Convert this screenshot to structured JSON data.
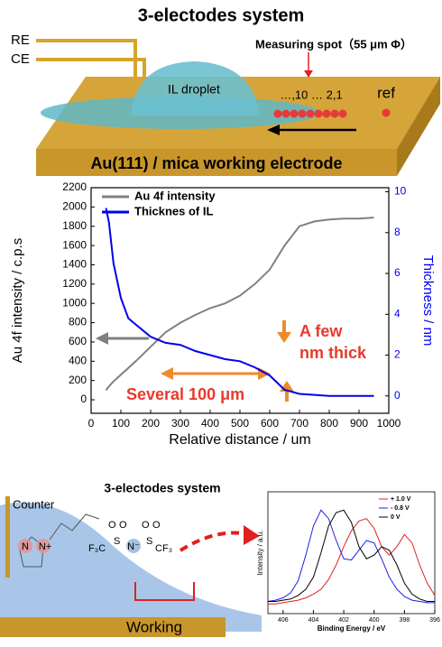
{
  "top_diagram": {
    "title": "3-electodes system",
    "re": "RE",
    "ce": "CE",
    "spot": "Measuring spot（55 μm Φ）",
    "droplet": "IL droplet",
    "spots": "…,10 … 2,1",
    "ref": "ref",
    "electrode": "Au(111) / mica working electrode"
  },
  "chart_data": [
    {
      "type": "line",
      "xlabel": "Relative distance / um",
      "ylabel": "Au 4f intensity / c.p.s",
      "y2label": "Thickness / nm",
      "x": [
        50,
        60,
        75,
        100,
        125,
        150,
        200,
        250,
        300,
        350,
        400,
        450,
        500,
        550,
        600,
        650,
        700,
        750,
        800,
        850,
        900,
        950
      ],
      "series": [
        {
          "name": "Au 4f intensity",
          "color": "#808080",
          "values": [
            100,
            140,
            190,
            260,
            330,
            400,
            550,
            700,
            800,
            880,
            950,
            1000,
            1080,
            1200,
            1350,
            1600,
            1800,
            1850,
            1870,
            1880,
            1880,
            1890
          ]
        },
        {
          "name": "Thicknes of IL",
          "color": "#0000ee",
          "axis": "y2",
          "values": [
            9.2,
            8.5,
            6.5,
            4.8,
            3.8,
            3.5,
            2.9,
            2.6,
            2.5,
            2.2,
            2.0,
            1.8,
            1.7,
            1.4,
            1.0,
            0.3,
            0.1,
            0.05,
            0,
            0,
            0,
            0
          ]
        }
      ],
      "xlim": [
        0,
        1000
      ],
      "xticks": [
        0,
        100,
        200,
        300,
        400,
        500,
        600,
        700,
        800,
        900,
        1000
      ],
      "ylim": [
        -140,
        2200
      ],
      "yticks": [
        0,
        200,
        400,
        600,
        800,
        1000,
        1200,
        1400,
        1600,
        1800,
        2000,
        2200
      ],
      "y2lim": [
        -0.85,
        10.2
      ],
      "y2ticks": [
        0,
        2,
        4,
        6,
        8,
        10
      ],
      "annotations": [
        [
          "A few",
          "nm thick"
        ],
        "Several 100 μm"
      ],
      "legend": "upper-left"
    },
    {
      "type": "line",
      "xlabel": "Binding Energy / eV",
      "ylabel": "Intensity / a.u.",
      "x": [
        407,
        406.5,
        406,
        405.5,
        405,
        404.5,
        404,
        403.5,
        403,
        402.5,
        402,
        401.5,
        401,
        400.5,
        400,
        399.5,
        399,
        398.5,
        398,
        397.5,
        397,
        396.5,
        396
      ],
      "series": [
        {
          "name": "+ 1.0 V",
          "color": "#e02020",
          "values": [
            0.08,
            0.08,
            0.09,
            0.1,
            0.11,
            0.13,
            0.16,
            0.2,
            0.28,
            0.4,
            0.55,
            0.68,
            0.76,
            0.78,
            0.7,
            0.55,
            0.48,
            0.55,
            0.65,
            0.58,
            0.4,
            0.25,
            0.15
          ]
        },
        {
          "name": "- 0.8 V",
          "color": "#2020e0",
          "values": [
            0.1,
            0.11,
            0.13,
            0.17,
            0.27,
            0.48,
            0.72,
            0.85,
            0.78,
            0.6,
            0.45,
            0.44,
            0.52,
            0.6,
            0.58,
            0.45,
            0.3,
            0.2,
            0.14,
            0.11,
            0.1,
            0.09,
            0.09
          ]
        },
        {
          "name": "0 V",
          "color": "#000000",
          "values": [
            0.1,
            0.1,
            0.11,
            0.12,
            0.15,
            0.2,
            0.3,
            0.5,
            0.72,
            0.83,
            0.85,
            0.75,
            0.55,
            0.45,
            0.48,
            0.55,
            0.52,
            0.4,
            0.25,
            0.16,
            0.12,
            0.1,
            0.1
          ]
        }
      ],
      "xlim": [
        407,
        396
      ],
      "xticks": [
        406,
        404,
        402,
        400,
        398,
        396
      ],
      "ylim": [
        0,
        1
      ],
      "legend": "upper-right"
    }
  ],
  "bottom_diagram": {
    "title": "3-electodes system",
    "counter": "Counter",
    "working": "Working",
    "cation_n": "N",
    "cation_np": "N+",
    "anion_n": "N⁻",
    "f3c": "F₃C",
    "cf3": "CF₃",
    "s": "S",
    "o": "O"
  }
}
